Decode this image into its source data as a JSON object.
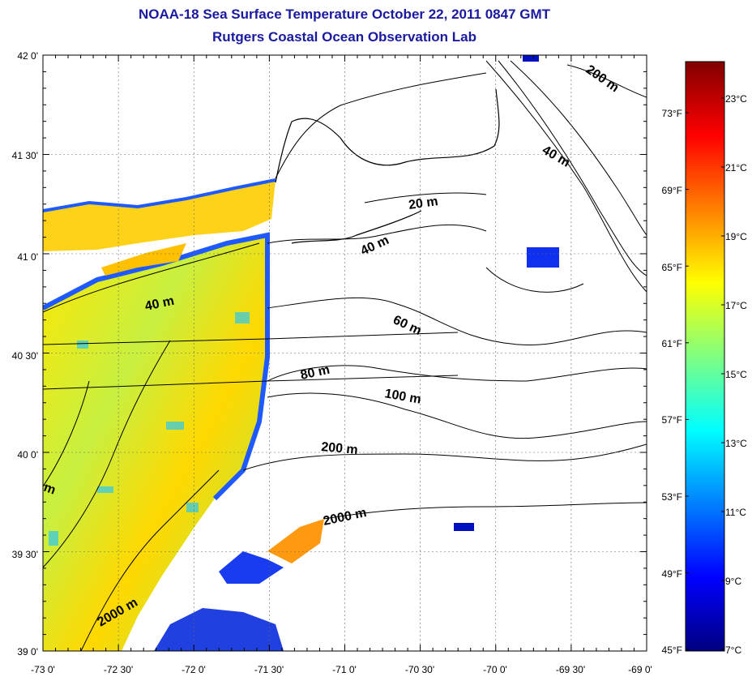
{
  "title": "NOAA-18 Sea Surface Temperature October 22, 2011 0847 GMT",
  "subtitle": "Rutgers Coastal Ocean Observation Lab",
  "axes": {
    "lat_labels": [
      "42 0'",
      "41 30'",
      "41 0'",
      "40 30'",
      "40 0'",
      "39 30'",
      "39 0'"
    ],
    "lon_labels": [
      "-73 0'",
      "-72 30'",
      "-72 0'",
      "-71 30'",
      "-71 0'",
      "-70 30'",
      "-70 0'",
      "-69 30'",
      "-69 0'"
    ]
  },
  "contour_labels": [
    "200 m",
    "40 m",
    "20 m",
    "40 m",
    "40 m",
    "60 m",
    "80 m",
    "100 m",
    "200 m",
    "2000 m",
    "2000 m",
    "m"
  ],
  "colorbar": {
    "celsius": [
      "23°C",
      "21°C",
      "19°C",
      "17°C",
      "15°C",
      "13°C",
      "11°C",
      "9°C",
      "7°C"
    ],
    "fahrenheit": [
      "73°F",
      "69°F",
      "65°F",
      "61°F",
      "57°F",
      "53°F",
      "49°F",
      "45°F"
    ],
    "colors": [
      "#000080",
      "#0000ff",
      "#0080ff",
      "#00ffff",
      "#80ff80",
      "#ffff00",
      "#ff8000",
      "#ff0000",
      "#800000"
    ]
  }
}
